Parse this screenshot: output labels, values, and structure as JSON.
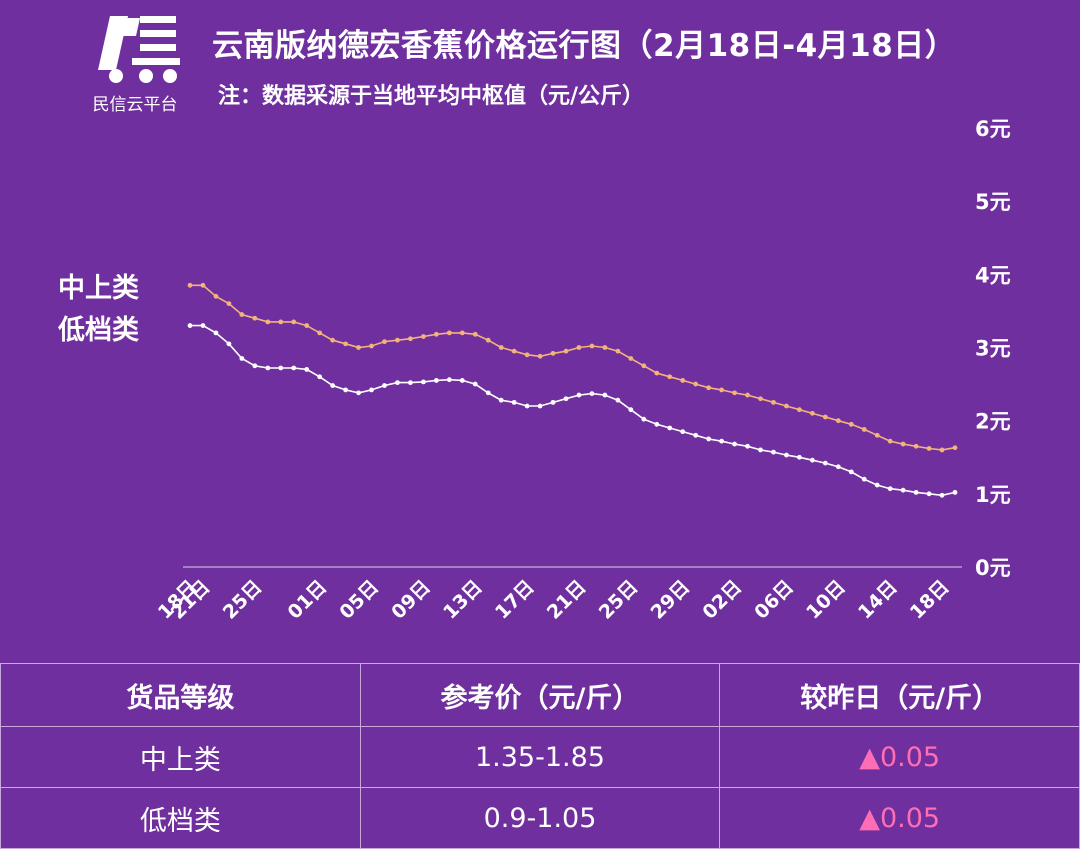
{
  "brand": {
    "logo_text": "民信云平台"
  },
  "title": "云南版纳德宏香蕉价格运行图（2月18日-4月18日）",
  "subtitle": "注：数据采源于当地平均中枢值（元/公斤）",
  "legend": {
    "upper": "中上类",
    "lower": "低档类"
  },
  "colors": {
    "background": "#6f2f9e",
    "upper_line": "#f2b47a",
    "lower_line": "#ffffff",
    "up_arrow": "#ff6eb4"
  },
  "chart_data": {
    "type": "line",
    "title": "云南版纳德宏香蕉价格运行图（2月18日-4月18日）",
    "ylabel": "元/公斤",
    "ylim": [
      0,
      6
    ],
    "y_ticks": [
      "0元",
      "1元",
      "2元",
      "3元",
      "4元",
      "5元",
      "6元"
    ],
    "x_tick_labels": [
      "18日",
      "21日",
      "25日",
      "01日",
      "05日",
      "09日",
      "13日",
      "17日",
      "21日",
      "25日",
      "29日",
      "02日",
      "06日",
      "10日",
      "14日",
      "18日"
    ],
    "x_tick_index": [
      0,
      1,
      5,
      10,
      14,
      18,
      22,
      26,
      30,
      34,
      38,
      42,
      46,
      50,
      54,
      58
    ],
    "series": [
      {
        "name": "中上类",
        "values": [
          3.85,
          3.85,
          3.7,
          3.6,
          3.45,
          3.4,
          3.35,
          3.35,
          3.35,
          3.3,
          3.2,
          3.1,
          3.05,
          3.0,
          3.02,
          3.08,
          3.1,
          3.12,
          3.15,
          3.18,
          3.2,
          3.2,
          3.18,
          3.1,
          3.0,
          2.95,
          2.9,
          2.88,
          2.92,
          2.95,
          3.0,
          3.02,
          3.0,
          2.95,
          2.85,
          2.75,
          2.65,
          2.6,
          2.55,
          2.5,
          2.45,
          2.42,
          2.38,
          2.35,
          2.3,
          2.25,
          2.2,
          2.15,
          2.1,
          2.05,
          2.0,
          1.95,
          1.88,
          1.8,
          1.72,
          1.68,
          1.65,
          1.62,
          1.6,
          1.63
        ]
      },
      {
        "name": "低档类",
        "values": [
          3.3,
          3.3,
          3.2,
          3.05,
          2.85,
          2.75,
          2.72,
          2.72,
          2.72,
          2.7,
          2.6,
          2.48,
          2.42,
          2.38,
          2.42,
          2.48,
          2.52,
          2.52,
          2.53,
          2.55,
          2.56,
          2.55,
          2.5,
          2.38,
          2.28,
          2.25,
          2.2,
          2.2,
          2.25,
          2.3,
          2.35,
          2.37,
          2.35,
          2.28,
          2.15,
          2.02,
          1.95,
          1.9,
          1.85,
          1.8,
          1.75,
          1.72,
          1.68,
          1.65,
          1.6,
          1.57,
          1.53,
          1.5,
          1.46,
          1.42,
          1.37,
          1.3,
          1.2,
          1.12,
          1.07,
          1.05,
          1.02,
          1.0,
          0.98,
          1.02
        ]
      }
    ]
  },
  "table": {
    "headers": [
      "货品等级",
      "参考价（元/斤）",
      "较昨日（元/斤）"
    ],
    "rows": [
      {
        "grade": "中上类",
        "price": "1.35-1.85",
        "change": "▲0.05"
      },
      {
        "grade": "低档类",
        "price": "0.9-1.05",
        "change": "▲0.05"
      }
    ]
  }
}
